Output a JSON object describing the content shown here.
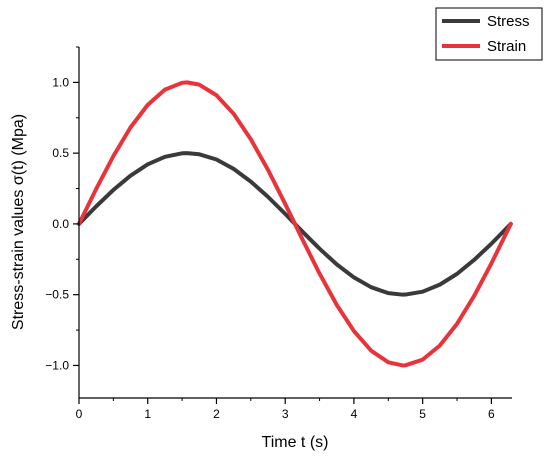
{
  "chart_data": {
    "type": "line",
    "title": "",
    "xlabel": "Time t (s)",
    "ylabel": "Stress-strain values σ(t) (Mpa)",
    "xlim": [
      0,
      6.3
    ],
    "ylim": [
      -1.23,
      1.25
    ],
    "xticks": [
      "0",
      "1",
      "2",
      "3",
      "4",
      "5",
      "6"
    ],
    "yticks": [
      "−1.0",
      "−0.5",
      "0.0",
      "0.5",
      "1.0"
    ],
    "ytick_values": [
      -1.0,
      -0.5,
      0.0,
      0.5,
      1.0
    ],
    "xtick_values": [
      0,
      1,
      2,
      3,
      4,
      5,
      6
    ],
    "grid": false,
    "legend_position": "top-right",
    "series": [
      {
        "name": "Stress",
        "color": "#3a3a3a",
        "x": [
          0,
          0.25,
          0.5,
          0.75,
          1.0,
          1.25,
          1.5,
          1.571,
          1.75,
          2.0,
          2.25,
          2.5,
          2.75,
          3.0,
          3.142,
          3.25,
          3.5,
          3.75,
          4.0,
          4.25,
          4.5,
          4.712,
          4.75,
          5.0,
          5.25,
          5.5,
          5.75,
          6.0,
          6.283
        ],
        "y": [
          0,
          0.124,
          0.24,
          0.341,
          0.421,
          0.474,
          0.499,
          0.5,
          0.492,
          0.455,
          0.389,
          0.299,
          0.191,
          0.071,
          0,
          -0.054,
          -0.175,
          -0.286,
          -0.378,
          -0.447,
          -0.489,
          -0.5,
          -0.499,
          -0.479,
          -0.429,
          -0.353,
          -0.254,
          -0.14,
          0
        ]
      },
      {
        "name": "Strain",
        "color": "#e8333a",
        "x": [
          0,
          0.25,
          0.5,
          0.75,
          1.0,
          1.25,
          1.5,
          1.571,
          1.75,
          2.0,
          2.25,
          2.5,
          2.75,
          3.0,
          3.142,
          3.25,
          3.5,
          3.75,
          4.0,
          4.25,
          4.5,
          4.712,
          4.75,
          5.0,
          5.25,
          5.5,
          5.75,
          6.0,
          6.283
        ],
        "y": [
          0,
          0.247,
          0.479,
          0.682,
          0.841,
          0.949,
          0.997,
          1.0,
          0.984,
          0.909,
          0.778,
          0.598,
          0.382,
          0.141,
          0,
          -0.108,
          -0.351,
          -0.572,
          -0.757,
          -0.895,
          -0.978,
          -1.0,
          -0.999,
          -0.959,
          -0.859,
          -0.706,
          -0.508,
          -0.279,
          0
        ]
      }
    ]
  }
}
